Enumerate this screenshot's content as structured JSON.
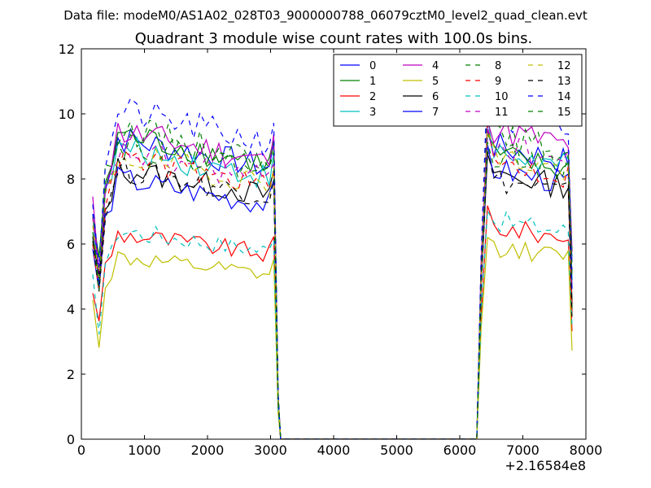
{
  "suptitle": "Data file: modeM0/AS1A02_028T03_9000000788_06079cztM0_level2_quad_clean.evt",
  "chart_data": {
    "type": "line",
    "title": "Quadrant 3 module wise count rates with 100.0s bins.",
    "xlabel": "",
    "ylabel": "",
    "x_offset_label": "+2.16584e8",
    "xlim": [
      0,
      8000
    ],
    "ylim": [
      0,
      12
    ],
    "xticks": [
      "0",
      "1000",
      "2000",
      "3000",
      "4000",
      "5000",
      "6000",
      "7000",
      "8000"
    ],
    "yticks": [
      "0",
      "2",
      "4",
      "6",
      "8",
      "10",
      "12"
    ],
    "grid": false,
    "legend_position": "top-right",
    "legend_columns": 4,
    "segment_a_x": [
      180,
      280,
      380,
      480,
      580,
      680,
      780,
      880,
      980,
      1080,
      1180,
      1280,
      1380,
      1480,
      1580,
      1680,
      1780,
      1880,
      1980,
      2080,
      2180,
      2280,
      2380,
      2480,
      2580,
      2680,
      2780,
      2880,
      2980,
      3050,
      3120,
      3160
    ],
    "zero_x": [
      3160,
      6270
    ],
    "segment_b_x": [
      6270,
      6340,
      6440,
      6540,
      6640,
      6740,
      6840,
      6940,
      7040,
      7140,
      7240,
      7340,
      7440,
      7540,
      7640,
      7720,
      7780
    ],
    "series": [
      {
        "name": "0",
        "color": "#0000ff",
        "dash": false,
        "level_a": 8.8,
        "level_b": 8.7
      },
      {
        "name": "1",
        "color": "#008000",
        "dash": false,
        "level_a": 8.9,
        "level_b": 8.4
      },
      {
        "name": "2",
        "color": "#ff0000",
        "dash": false,
        "level_a": 6.0,
        "level_b": 6.3
      },
      {
        "name": "3",
        "color": "#00bfbf",
        "dash": false,
        "level_a": 8.5,
        "level_b": 8.5
      },
      {
        "name": "4",
        "color": "#bf00bf",
        "dash": false,
        "level_a": 9.0,
        "level_b": 9.2
      },
      {
        "name": "5",
        "color": "#bfbf00",
        "dash": false,
        "level_a": 5.3,
        "level_b": 5.7
      },
      {
        "name": "6",
        "color": "#000000",
        "dash": false,
        "level_a": 7.9,
        "level_b": 7.9
      },
      {
        "name": "7",
        "color": "#0000ff",
        "dash": false,
        "level_a": 7.6,
        "level_b": 8.0
      },
      {
        "name": "8",
        "color": "#008000",
        "dash": true,
        "level_a": 9.1,
        "level_b": 9.0
      },
      {
        "name": "9",
        "color": "#ff0000",
        "dash": true,
        "level_a": 8.2,
        "level_b": 8.2
      },
      {
        "name": "10",
        "color": "#00bfbf",
        "dash": true,
        "level_a": 6.1,
        "level_b": 6.5
      },
      {
        "name": "11",
        "color": "#bf00bf",
        "dash": true,
        "level_a": 8.4,
        "level_b": 8.7
      },
      {
        "name": "12",
        "color": "#bfbf00",
        "dash": true,
        "level_a": 8.3,
        "level_b": 8.4
      },
      {
        "name": "13",
        "color": "#000000",
        "dash": true,
        "level_a": 7.9,
        "level_b": 7.7
      },
      {
        "name": "14",
        "color": "#0000ff",
        "dash": true,
        "level_a": 9.6,
        "level_b": 9.5
      },
      {
        "name": "15",
        "color": "#008000",
        "dash": true,
        "level_a": 8.7,
        "level_b": 8.5
      }
    ]
  }
}
